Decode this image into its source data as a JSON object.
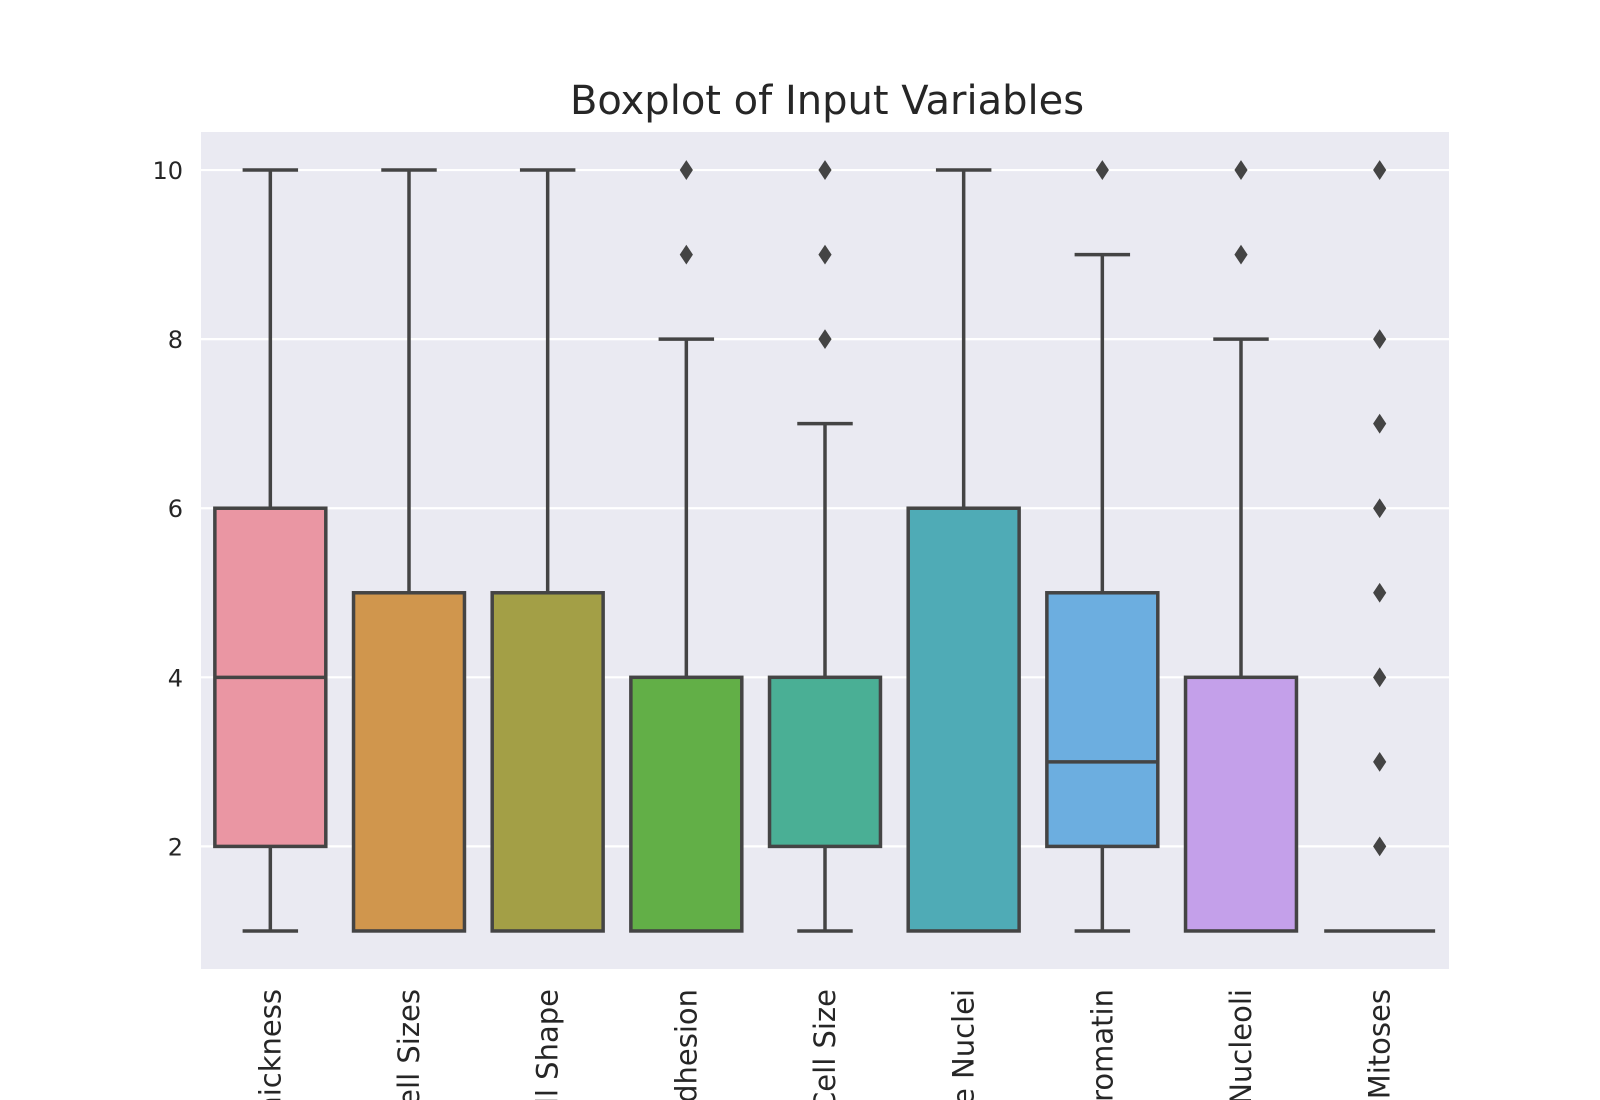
{
  "chart_data": {
    "type": "box",
    "title": "Boxplot of Input Variables",
    "xlabel": "",
    "ylabel": "",
    "ylim": [
      0.55,
      10.45
    ],
    "yticks": [
      2,
      4,
      6,
      8,
      10
    ],
    "grid": true,
    "categories": [
      "hickness",
      "ell Sizes",
      "ll Shape",
      "dhesion",
      "Cell Size",
      "e Nuclei",
      "hromatin",
      "Nucleoli",
      "Mitoses"
    ],
    "boxes": [
      {
        "whislo": 1,
        "q1": 2,
        "med": 4,
        "q3": 6,
        "whishi": 10,
        "fliers": [],
        "color": "#ea96a3"
      },
      {
        "whislo": 1,
        "q1": 1,
        "med": 1,
        "q3": 5,
        "whishi": 10,
        "fliers": [],
        "color": "#d0964d"
      },
      {
        "whislo": 1,
        "q1": 1,
        "med": 1,
        "q3": 5,
        "whishi": 10,
        "fliers": [],
        "color": "#a39f46"
      },
      {
        "whislo": 1,
        "q1": 1,
        "med": 1,
        "q3": 4,
        "whishi": 8,
        "fliers": [
          9,
          10
        ],
        "color": "#62af47"
      },
      {
        "whislo": 1,
        "q1": 2,
        "med": 2,
        "q3": 4,
        "whishi": 7,
        "fliers": [
          8,
          9,
          10
        ],
        "color": "#4aaf95"
      },
      {
        "whislo": 1,
        "q1": 1,
        "med": 1,
        "q3": 6,
        "whishi": 10,
        "fliers": [],
        "color": "#4fabb6"
      },
      {
        "whislo": 1,
        "q1": 2,
        "med": 3,
        "q3": 5,
        "whishi": 9,
        "fliers": [
          10
        ],
        "color": "#6caee0"
      },
      {
        "whislo": 1,
        "q1": 1,
        "med": 1,
        "q3": 4,
        "whishi": 8,
        "fliers": [
          9,
          10
        ],
        "color": "#c4a0ea"
      },
      {
        "whislo": 1,
        "q1": 1,
        "med": 1,
        "q3": 1,
        "whishi": 1,
        "fliers": [
          2,
          3,
          4,
          5,
          6,
          7,
          8,
          10
        ],
        "color": "#e88fd0"
      }
    ],
    "colors": {
      "background": "#eaeaf2",
      "grid": "#ffffff",
      "line": "#444444",
      "text": "#262626"
    }
  }
}
